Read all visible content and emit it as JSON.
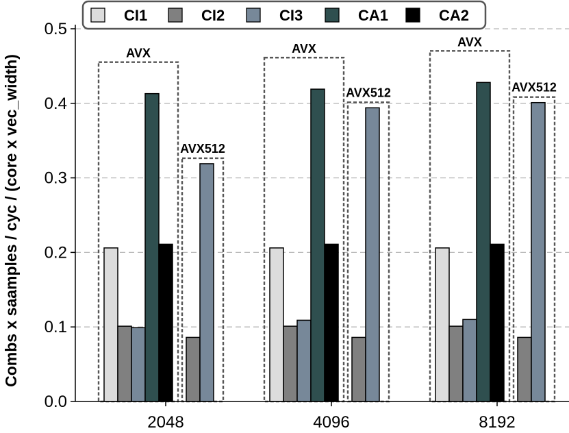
{
  "chart_data": {
    "type": "bar",
    "title": "",
    "xlabel": "",
    "ylabel": "Combs x saamples / cyc / (core x vec_width)",
    "ylim": [
      0,
      0.5
    ],
    "yticks": [
      "0.0",
      "0.1",
      "0.2",
      "0.3",
      "0.4",
      "0.5"
    ],
    "grid": "horizontal dashed",
    "legend_position": "top",
    "categories": [
      "2048",
      "4096",
      "8192"
    ],
    "series": [
      {
        "name": "CI1",
        "color": "#dcdcdc",
        "isa": "AVX",
        "values": [
          0.206,
          0.206,
          0.206
        ]
      },
      {
        "name": "CI2",
        "color": "#808080",
        "isa": "AVX",
        "values": [
          0.101,
          0.101,
          0.101
        ]
      },
      {
        "name": "CI3",
        "color": "#778899",
        "isa": "AVX",
        "values": [
          0.099,
          0.109,
          0.11
        ]
      },
      {
        "name": "CA1",
        "color": "#2f4f4f",
        "isa": "AVX",
        "values": [
          0.413,
          0.419,
          0.428
        ]
      },
      {
        "name": "CA2",
        "color": "#000000",
        "isa": "AVX",
        "values": [
          0.211,
          0.211,
          0.211
        ]
      },
      {
        "name": "CI2",
        "color": "#808080",
        "isa": "AVX512",
        "values": [
          0.086,
          0.086,
          0.086
        ]
      },
      {
        "name": "CI3",
        "color": "#778899",
        "isa": "AVX512",
        "values": [
          0.319,
          0.394,
          0.401
        ]
      }
    ],
    "legend": [
      {
        "label": "CI1",
        "color": "#dcdcdc"
      },
      {
        "label": "CI2",
        "color": "#808080"
      },
      {
        "label": "CI3",
        "color": "#778899"
      },
      {
        "label": "CA1",
        "color": "#2f4f4f"
      },
      {
        "label": "CA2",
        "color": "#000000"
      }
    ],
    "group_labels": {
      "avx": "AVX",
      "avx512": "AVX512"
    },
    "annotations": [
      {
        "category": "2048",
        "box": "avx",
        "label": "AVX"
      },
      {
        "category": "2048",
        "box": "avx512",
        "label": "AVX512"
      },
      {
        "category": "4096",
        "box": "avx",
        "label": "AVX"
      },
      {
        "category": "4096",
        "box": "avx512",
        "label": "AVX512"
      },
      {
        "category": "8192",
        "box": "avx",
        "label": "AVX"
      },
      {
        "category": "8192",
        "box": "avx512",
        "label": "AVX512"
      }
    ]
  }
}
